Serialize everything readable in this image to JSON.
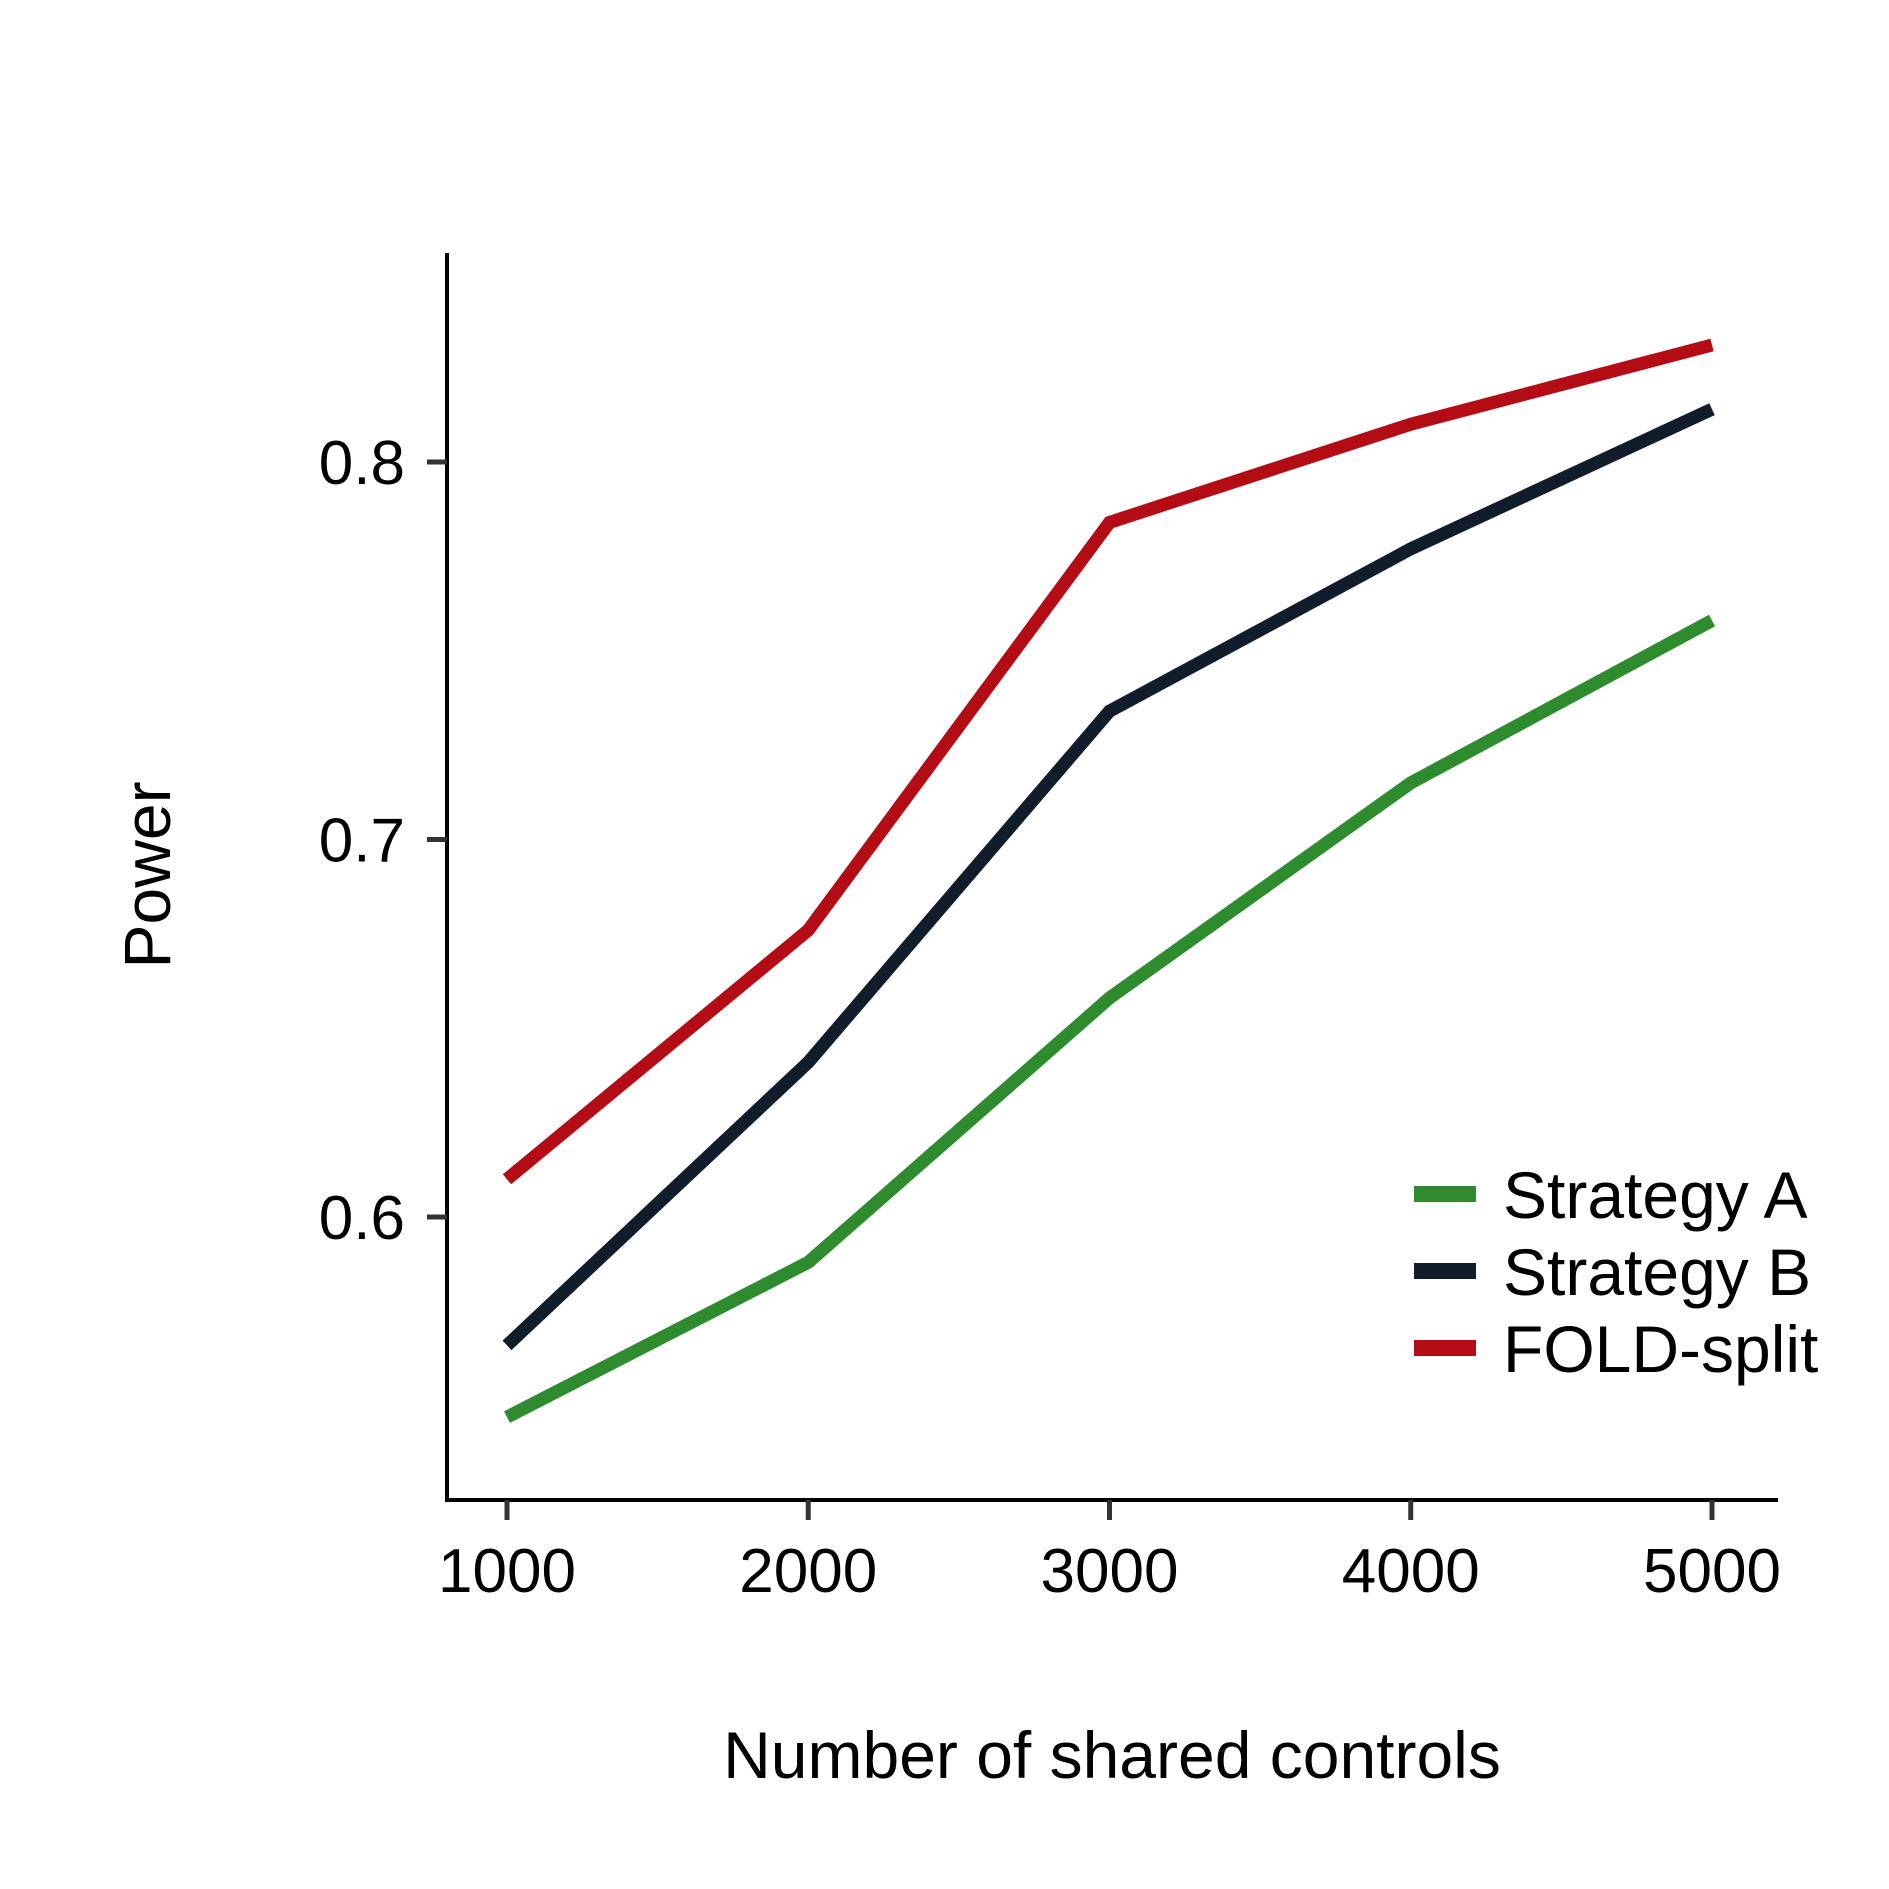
{
  "chart_data": {
    "type": "line",
    "title": "",
    "xlabel": "Number of shared controls",
    "ylabel": "Power",
    "x": [
      1000,
      2000,
      3000,
      4000,
      5000
    ],
    "x_tick_labels": [
      "1000",
      "2000",
      "3000",
      "4000",
      "5000"
    ],
    "y_ticks": [
      0.6,
      0.7,
      0.8
    ],
    "y_tick_labels": [
      "0.6",
      "0.7",
      "0.8"
    ],
    "xlim": [
      800,
      5200
    ],
    "ylim": [
      0.525,
      0.855
    ],
    "grid": false,
    "legend_position": "bottom-right",
    "series": [
      {
        "name": "Strategy A",
        "color": "#2e8b2e",
        "values": [
          0.547,
          0.588,
          0.658,
          0.715,
          0.758
        ]
      },
      {
        "name": "Strategy B",
        "color": "#111d2b",
        "values": [
          0.566,
          0.641,
          0.734,
          0.777,
          0.814
        ]
      },
      {
        "name": "FOLD-split",
        "color": "#b30c14",
        "values": [
          0.61,
          0.676,
          0.784,
          0.81,
          0.831
        ]
      }
    ]
  }
}
